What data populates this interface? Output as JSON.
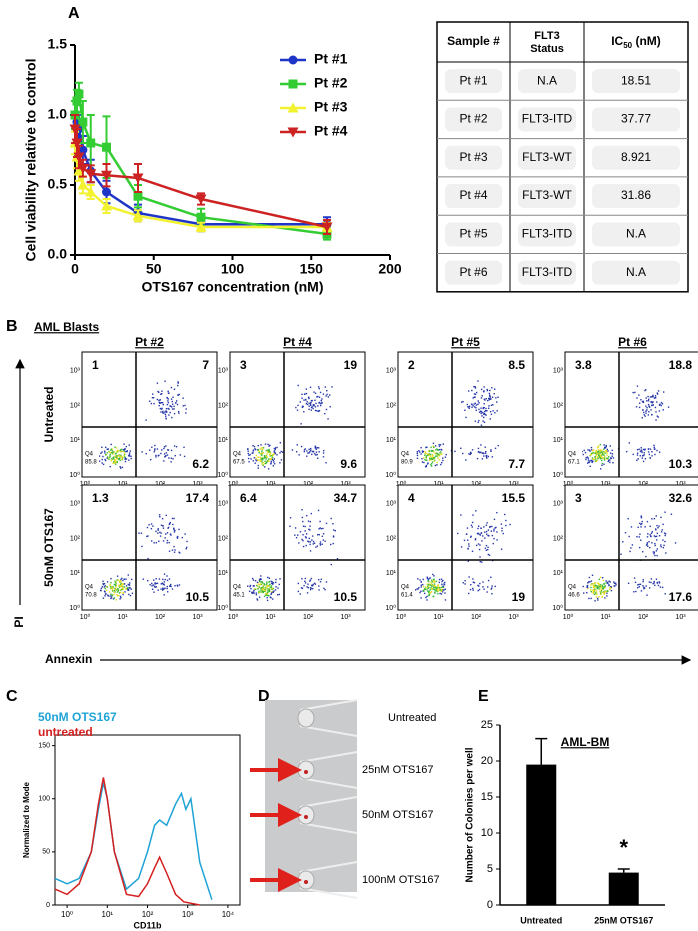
{
  "chart_data": [
    {
      "type": "line",
      "panel": "A",
      "ylabel": "Cell viability relative to control",
      "xlabel": "OTS167 concentration (nM)",
      "x": [
        0,
        1.25,
        2.5,
        5,
        10,
        20,
        40,
        80,
        160
      ],
      "series": [
        {
          "name": "Pt #1",
          "color": "#1f35c8",
          "marker": "circle",
          "values": [
            1.0,
            0.95,
            0.9,
            0.75,
            0.6,
            0.45,
            0.3,
            0.22,
            0.22
          ],
          "errors": [
            0.1,
            0.15,
            0.1,
            0.1,
            0.08,
            0.08,
            0.06,
            0.05,
            0.05
          ]
        },
        {
          "name": "Pt #2",
          "color": "#33cc33",
          "marker": "square",
          "values": [
            1.0,
            1.1,
            1.15,
            0.95,
            0.8,
            0.77,
            0.42,
            0.27,
            0.15
          ],
          "errors": [
            0.1,
            0.08,
            0.08,
            0.15,
            0.2,
            0.22,
            0.08,
            0.06,
            0.04
          ]
        },
        {
          "name": "Pt #3",
          "color": "#f2f230",
          "marker": "triangle-up",
          "values": [
            0.8,
            0.7,
            0.6,
            0.5,
            0.45,
            0.35,
            0.28,
            0.2,
            0.2
          ],
          "errors": [
            0.08,
            0.08,
            0.07,
            0.06,
            0.05,
            0.05,
            0.04,
            0.03,
            0.03
          ]
        },
        {
          "name": "Pt #4",
          "color": "#cc2222",
          "marker": "triangle-down",
          "values": [
            0.9,
            0.8,
            0.7,
            0.62,
            0.58,
            0.57,
            0.55,
            0.4,
            0.2
          ],
          "errors": [
            0.1,
            0.1,
            0.08,
            0.06,
            0.06,
            0.08,
            0.1,
            0.04,
            0.05
          ]
        }
      ],
      "xlim": [
        0,
        200
      ],
      "xticks": [
        0,
        50,
        100,
        150,
        200
      ],
      "ylim": [
        0,
        1.5
      ],
      "yticks": [
        {
          "value": 0,
          "label": "0.0"
        },
        {
          "value": 0.5,
          "label": "0.5"
        },
        {
          "value": 1,
          "label": "1.0"
        },
        {
          "value": 1.5,
          "label": "1.5"
        }
      ]
    },
    {
      "type": "line",
      "panel": "C",
      "ylabel": "Normalized to Mode",
      "xlabel": "CD11b",
      "log_x": true,
      "xlim": [
        0.5,
        20000
      ],
      "xticks": [
        {
          "value": 1,
          "label": "10⁰"
        },
        {
          "value": 10,
          "label": "10¹"
        },
        {
          "value": 100,
          "label": "10²"
        },
        {
          "value": 1000,
          "label": "10³"
        },
        {
          "value": 10000,
          "label": "10⁴"
        }
      ],
      "ylim": [
        0,
        160
      ],
      "yticks": [
        0,
        50,
        100,
        150
      ],
      "series": [
        {
          "name": "50nM OTS167",
          "color": "#1fa3d6",
          "x": [
            0.5,
            1,
            2,
            4,
            6,
            8,
            10,
            15,
            30,
            60,
            100,
            150,
            200,
            300,
            500,
            700,
            900,
            1200,
            2000,
            4000
          ],
          "values": [
            25,
            20,
            25,
            50,
            90,
            115,
            100,
            50,
            15,
            25,
            50,
            75,
            80,
            75,
            95,
            105,
            90,
            100,
            40,
            5
          ]
        },
        {
          "name": "untreated",
          "color": "#d42020",
          "x": [
            0.5,
            1,
            2,
            4,
            6,
            8,
            10,
            15,
            30,
            60,
            100,
            150,
            200,
            300,
            500,
            800,
            2000
          ],
          "values": [
            15,
            10,
            20,
            50,
            95,
            120,
            100,
            50,
            10,
            8,
            20,
            35,
            45,
            30,
            10,
            3,
            0
          ]
        }
      ]
    },
    {
      "type": "bar",
      "panel": "E",
      "title": "AML-BM",
      "ylabel": "Number of Colonies per well",
      "categories": [
        "Untreated",
        "25nM OTS167"
      ],
      "values": [
        19.5,
        4.5
      ],
      "errors": [
        3.6,
        0.5
      ],
      "color": "#000000",
      "ylim": [
        0,
        25
      ],
      "yticks": [
        0,
        5,
        10,
        15,
        20,
        25
      ],
      "annotation": "*"
    }
  ],
  "table": {
    "header": [
      "Sample #",
      "FLT3 Status",
      {
        "main": "IC",
        "sub": "50",
        "rest": " (nM)"
      }
    ],
    "rows": [
      [
        "Pt #1",
        "N.A",
        "18.51"
      ],
      [
        "Pt #2",
        "FLT3-ITD",
        "37.77"
      ],
      [
        "Pt #3",
        "FLT3-WT",
        "8.921"
      ],
      [
        "Pt #4",
        "FLT3-WT",
        "31.86"
      ],
      [
        "Pt #5",
        "FLT3-ITD",
        "N.A"
      ],
      [
        "Pt #6",
        "FLT3-ITD",
        "N.A"
      ]
    ]
  },
  "flow": {
    "panel": "B",
    "title": "AML Blasts",
    "columns": [
      "Pt #2",
      "Pt #4",
      "Pt #5",
      "Pt #6"
    ],
    "rows": [
      "Untreated",
      "50nM OTS167"
    ],
    "ylabel": "PI",
    "xlabel": "Annexin",
    "ticks": [
      "10⁰",
      "10¹",
      "10²",
      "10³"
    ],
    "quadrant_label": "Q4",
    "plots": [
      [
        {
          "ul": 1,
          "ur": 7,
          "lr": 6.2,
          "q4": 85.8
        },
        {
          "ul": 3,
          "ur": 19,
          "lr": 9.6,
          "q4": 67.5
        },
        {
          "ul": 2,
          "ur": 8.5,
          "lr": 7.7,
          "q4": 80.9
        },
        {
          "ul": 3.8,
          "ur": 18.8,
          "lr": 10.3,
          "q4": 67.1
        }
      ],
      [
        {
          "ul": 1.3,
          "ur": 17.4,
          "lr": 10.5,
          "q4": 70.8
        },
        {
          "ul": 6.4,
          "ur": 34.7,
          "lr": 10.5,
          "q4": 45.1
        },
        {
          "ul": 4,
          "ur": 15.5,
          "lr": 19,
          "q4": 61.4
        },
        {
          "ul": 3,
          "ur": 32.6,
          "lr": 17.6,
          "q4": 46.6
        }
      ]
    ]
  },
  "panel_d": {
    "panel": "D",
    "labels": [
      "Untreated",
      "25nM OTS167",
      "50nM OTS167",
      "100nM OTS167"
    ]
  }
}
